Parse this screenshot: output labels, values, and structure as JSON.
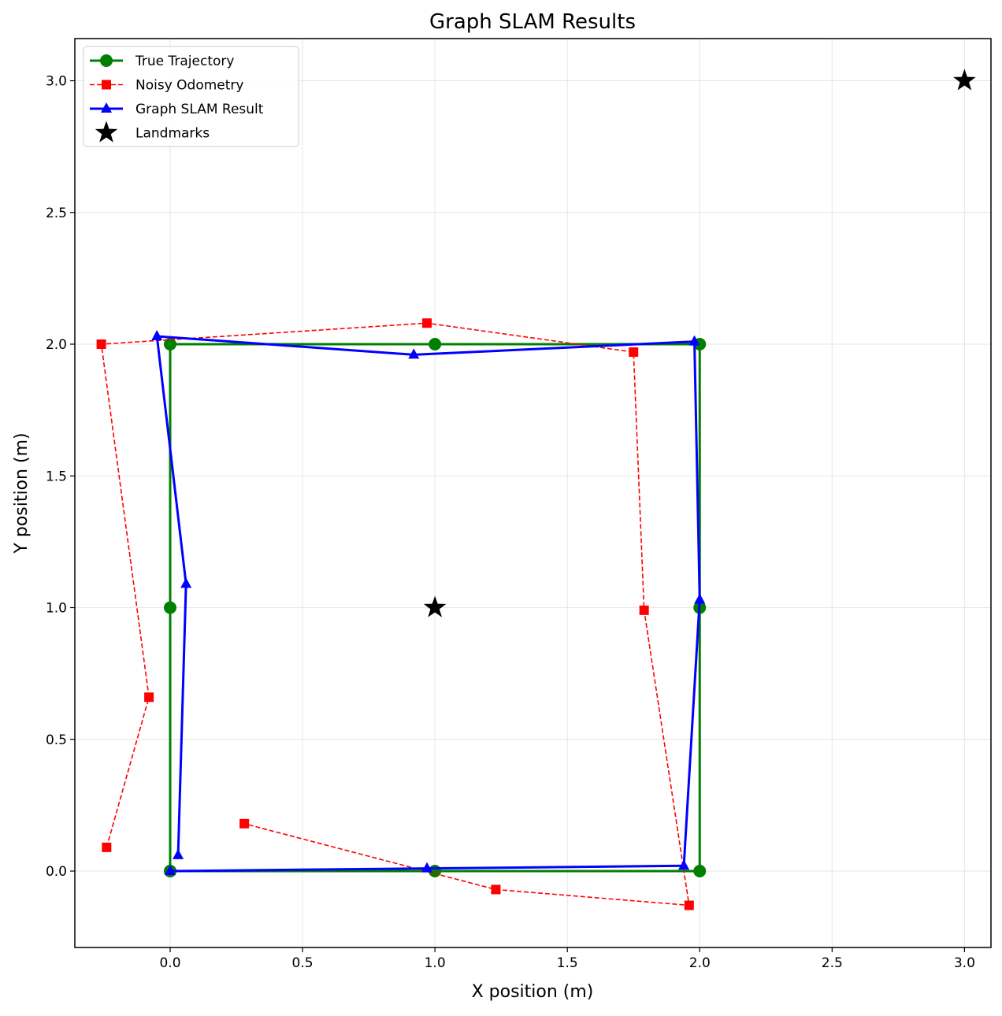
{
  "chart_data": {
    "type": "line",
    "title": "Graph SLAM Results",
    "xlabel": "X position (m)",
    "ylabel": "Y position (m)",
    "xlim": [
      -0.36,
      3.1
    ],
    "ylim": [
      -0.29,
      3.16
    ],
    "xticks": [
      "0.0",
      "0.5",
      "1.0",
      "1.5",
      "2.0",
      "2.5",
      "3.0"
    ],
    "xtick_values": [
      0.0,
      0.5,
      1.0,
      1.5,
      2.0,
      2.5,
      3.0
    ],
    "yticks": [
      "0.0",
      "0.5",
      "1.0",
      "1.5",
      "2.0",
      "2.5",
      "3.0"
    ],
    "ytick_values": [
      0.0,
      0.5,
      1.0,
      1.5,
      2.0,
      2.5,
      3.0
    ],
    "grid": true,
    "legend_position": "top-left",
    "series": [
      {
        "name": "True Trajectory",
        "color": "#008000",
        "marker": "circle",
        "linestyle": "solid",
        "x": [
          0,
          0,
          0,
          1,
          2,
          2,
          2,
          1,
          0
        ],
        "y": [
          0,
          1,
          2,
          2,
          2,
          1,
          0,
          0,
          0
        ]
      },
      {
        "name": "Noisy Odometry",
        "color": "#ff0000",
        "marker": "square",
        "linestyle": "dashed",
        "x": [
          -0.24,
          -0.08,
          -0.26,
          0.97,
          1.75,
          1.79,
          1.96,
          1.23,
          0.28
        ],
        "y": [
          0.09,
          0.66,
          2.0,
          2.08,
          1.97,
          0.99,
          -0.13,
          -0.07,
          0.18
        ]
      },
      {
        "name": "Graph SLAM Result",
        "color": "#0000ff",
        "marker": "triangle",
        "linestyle": "solid",
        "x": [
          0.03,
          0.06,
          -0.05,
          0.92,
          1.98,
          2.0,
          1.94,
          0.97,
          0.0
        ],
        "y": [
          0.06,
          1.09,
          2.03,
          1.96,
          2.01,
          1.03,
          0.02,
          0.01,
          0.0
        ]
      }
    ],
    "landmarks": {
      "name": "Landmarks",
      "color": "#000000",
      "marker": "star",
      "x": [
        1.0,
        3.0
      ],
      "y": [
        1.0,
        3.0
      ]
    }
  }
}
